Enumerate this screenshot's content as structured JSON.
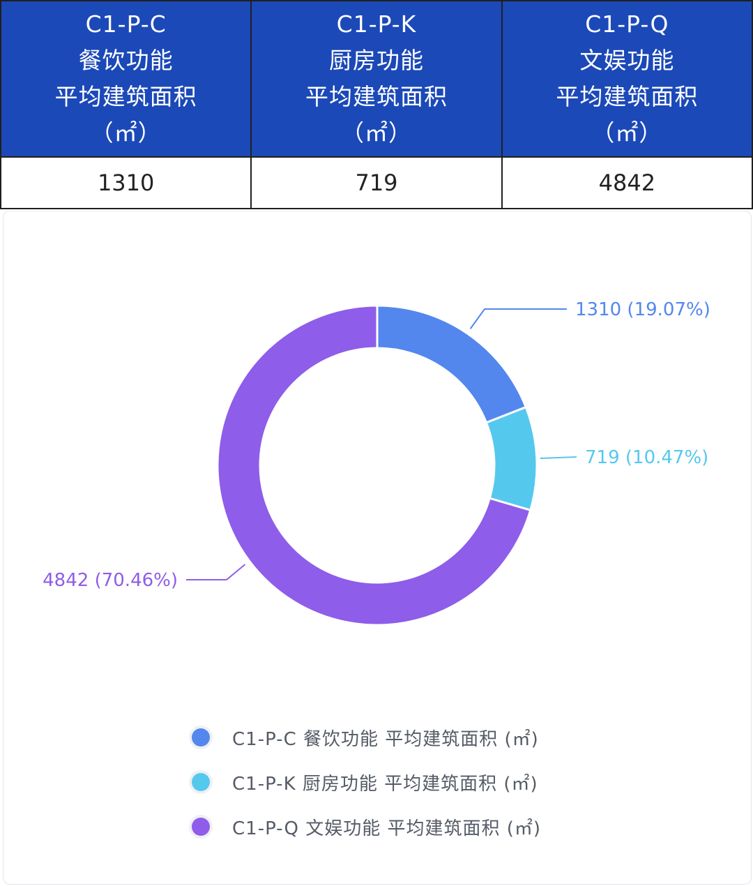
{
  "table": {
    "columns": [
      {
        "lines": [
          "C1-P-C",
          "餐饮功能",
          "平均建筑面积",
          "（㎡）"
        ],
        "value": "1310"
      },
      {
        "lines": [
          "C1-P-K",
          "厨房功能",
          "平均建筑面积",
          "（㎡）"
        ],
        "value": "719"
      },
      {
        "lines": [
          "C1-P-Q",
          "文娱功能",
          "平均建筑面积",
          "（㎡）"
        ],
        "value": "4842"
      }
    ]
  },
  "chart_data": {
    "type": "pie",
    "donut": true,
    "series": [
      {
        "name": "C1-P-C 餐饮功能 平均建筑面积 (㎡)",
        "value": 1310,
        "percent": 19.07,
        "label": "1310 (19.07%)",
        "color": "#5387ee"
      },
      {
        "name": "C1-P-K 厨房功能 平均建筑面积 (㎡)",
        "value": 719,
        "percent": 10.47,
        "label": "719 (10.47%)",
        "color": "#55c8ee"
      },
      {
        "name": "C1-P-Q 文娱功能 平均建筑面积 (㎡)",
        "value": 4842,
        "percent": 70.46,
        "label": "4842 (70.46%)",
        "color": "#8e5de9"
      }
    ],
    "legend_position": "bottom"
  },
  "colors": {
    "header_bg": "#1c49b8",
    "header_text": "#ffffff",
    "border": "#1f1f1f"
  }
}
